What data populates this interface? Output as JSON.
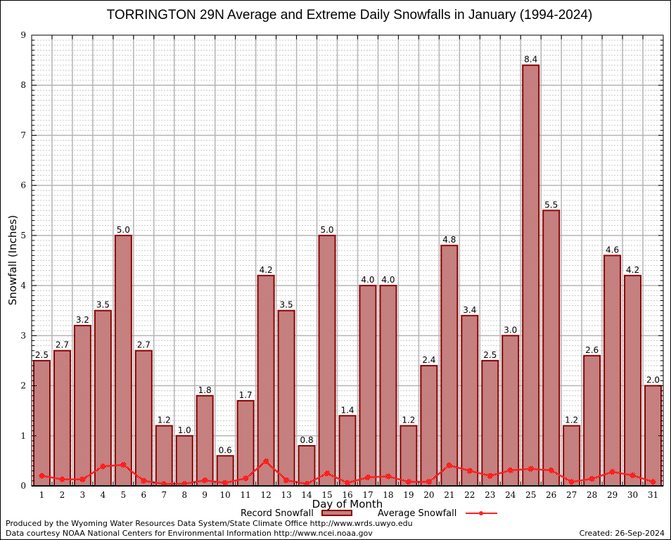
{
  "chart_data": {
    "type": "bar",
    "title": "TORRINGTON 29N Average and Extreme Daily Snowfalls in January (1994-2024)",
    "xlabel": "Day of Month",
    "ylabel": "Snowfall (Inches)",
    "ylim": [
      0,
      9
    ],
    "yticks": [
      "0",
      "1",
      "2",
      "3",
      "4",
      "5",
      "6",
      "7",
      "8",
      "9"
    ],
    "grid": true,
    "categories": [
      "1",
      "2",
      "3",
      "4",
      "5",
      "6",
      "7",
      "8",
      "9",
      "10",
      "11",
      "12",
      "13",
      "14",
      "15",
      "16",
      "17",
      "18",
      "19",
      "20",
      "21",
      "22",
      "23",
      "24",
      "25",
      "26",
      "27",
      "28",
      "29",
      "30",
      "31"
    ],
    "series": [
      {
        "name": "Record Snowfall",
        "type": "bar",
        "color": "#8b0000",
        "values": [
          2.5,
          2.7,
          3.2,
          3.5,
          5.0,
          2.7,
          1.2,
          1.0,
          1.8,
          0.6,
          1.7,
          4.2,
          3.5,
          0.8,
          5.0,
          1.4,
          4.0,
          4.0,
          1.2,
          2.4,
          4.8,
          3.4,
          2.5,
          3.0,
          8.4,
          5.5,
          1.2,
          2.6,
          4.6,
          4.2,
          2.0
        ],
        "labels": [
          "2.5",
          "2.7",
          "3.2",
          "3.5",
          "5.0",
          "2.7",
          "1.2",
          "1.0",
          "1.8",
          "0.6",
          "1.7",
          "4.2",
          "3.5",
          "0.8",
          "5.0",
          "1.4",
          "4.0",
          "4.0",
          "1.2",
          "2.4",
          "4.8",
          "3.4",
          "2.5",
          "3.0",
          "8.4",
          "5.5",
          "1.2",
          "2.6",
          "4.6",
          "4.2",
          "2.0"
        ]
      },
      {
        "name": "Average Snowfall",
        "type": "line",
        "color": "#ff2020",
        "values": [
          0.2,
          0.13,
          0.13,
          0.39,
          0.42,
          0.1,
          0.04,
          0.04,
          0.11,
          0.06,
          0.15,
          0.49,
          0.11,
          0.04,
          0.25,
          0.06,
          0.17,
          0.19,
          0.08,
          0.08,
          0.41,
          0.3,
          0.2,
          0.31,
          0.34,
          0.31,
          0.08,
          0.14,
          0.28,
          0.21,
          0.08
        ]
      }
    ],
    "legend": "bottom"
  },
  "footer": {
    "line1": "Produced by the Wyoming Water Resources Data System/State Climate Office http://www.wrds.uwyo.edu",
    "line2": "Data courtesy NOAA National Centers for Environmental Information http://www.ncei.noaa.gov",
    "created": "Created: 26-Sep-2024"
  }
}
